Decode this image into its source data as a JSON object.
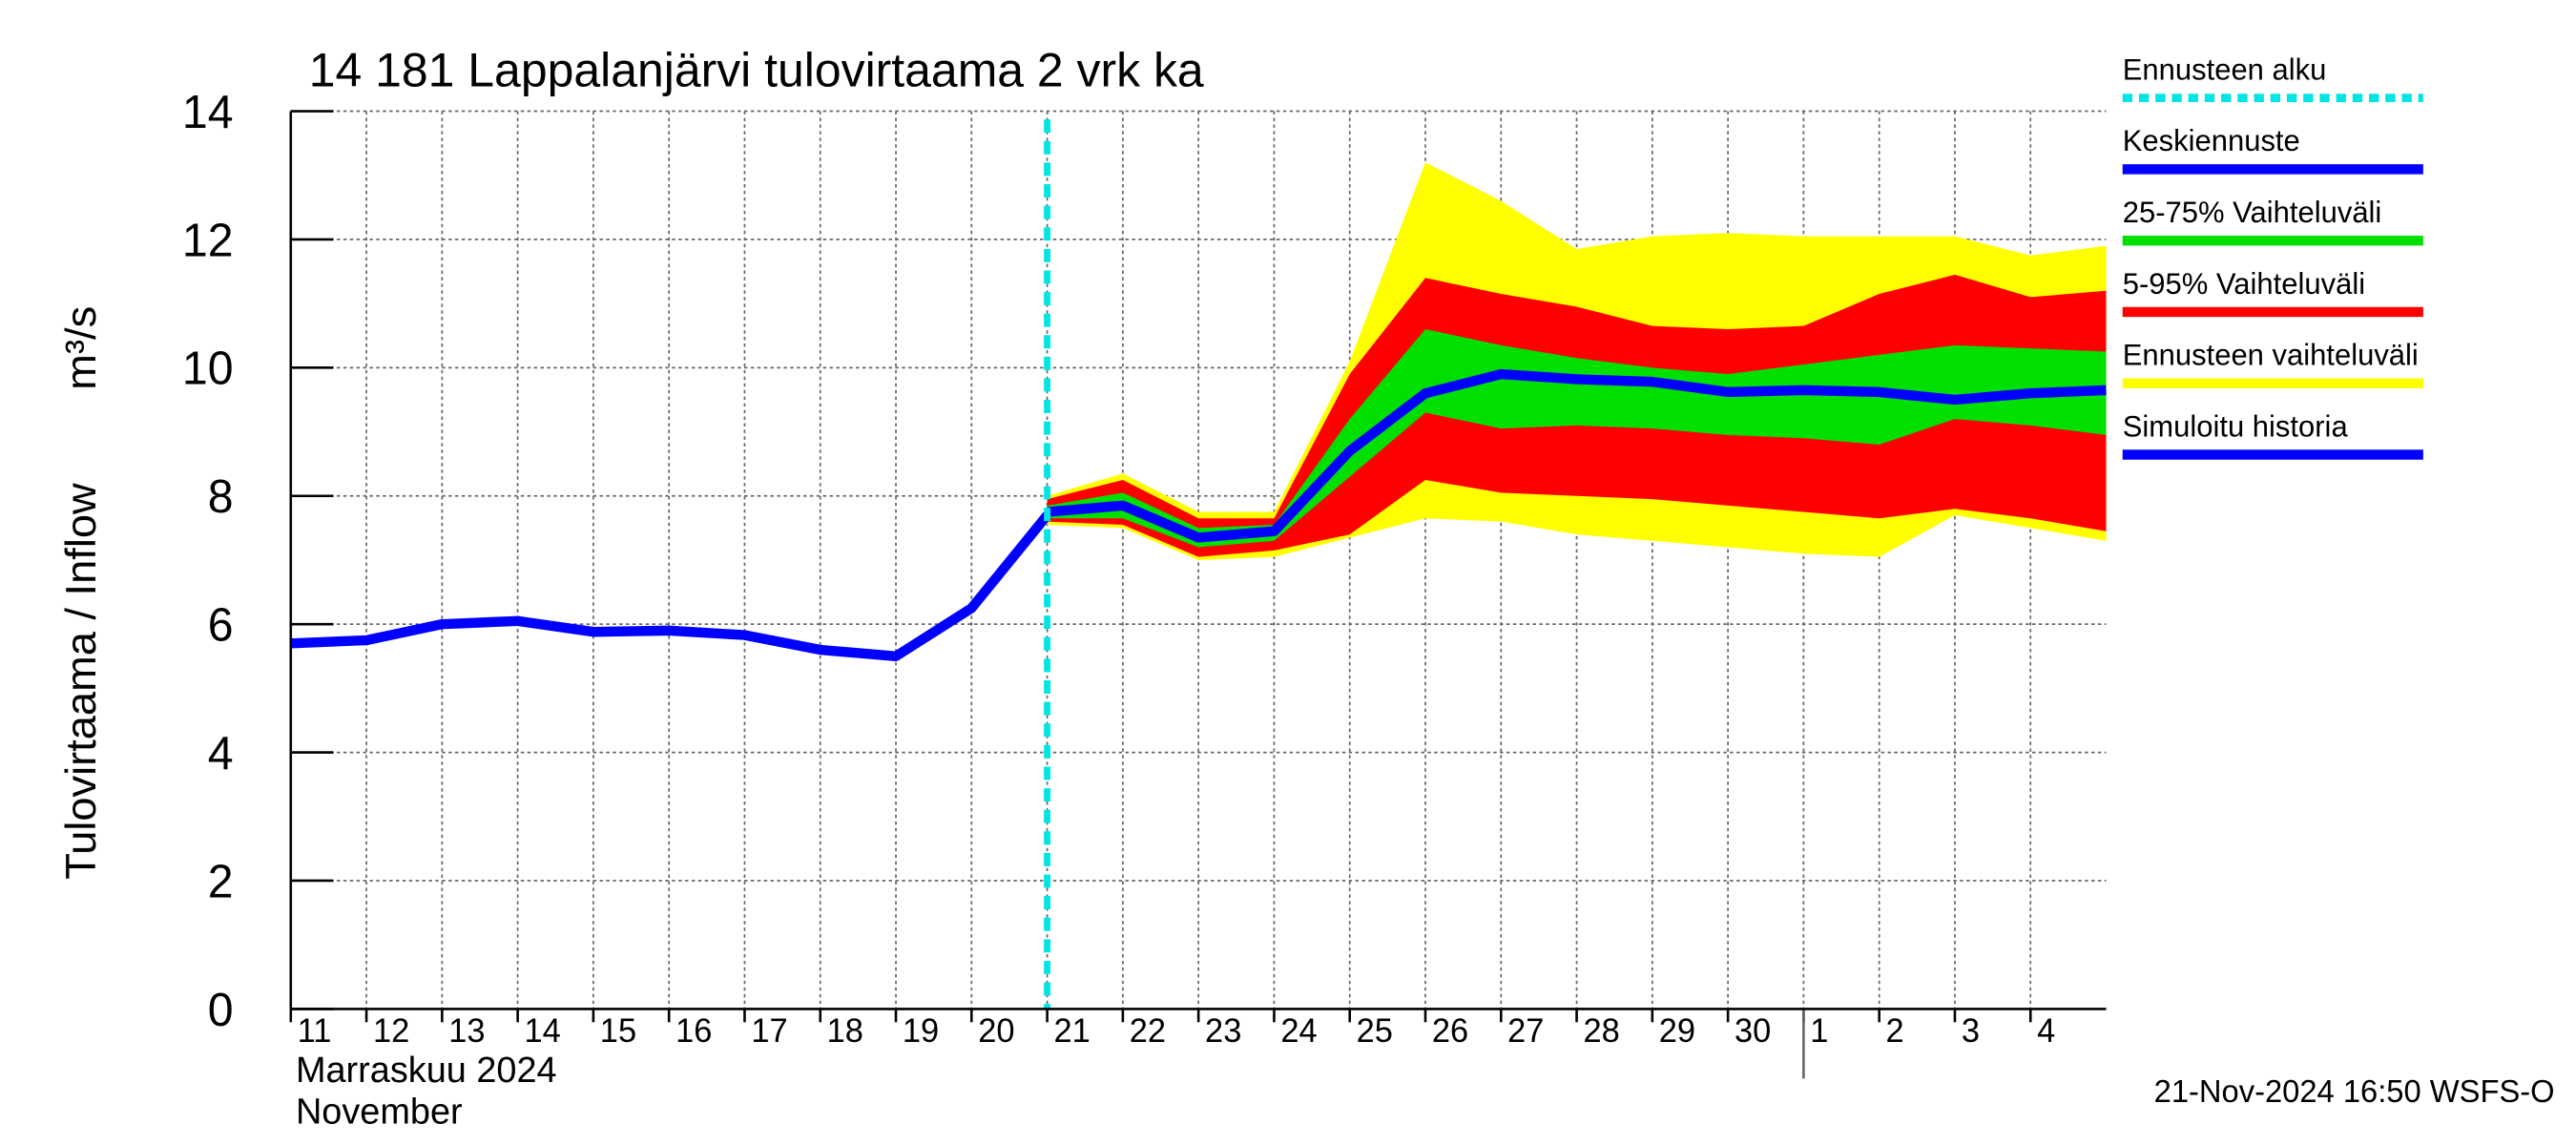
{
  "chart_data": {
    "type": "line",
    "title": "14 181 Lappalanjärvi tulovirtaama 2 vrk ka",
    "y_label": "Tulovirtaama / Inflow",
    "y_unit": "m³/s",
    "x_month_label": "Marraskuu 2024",
    "x_month_label_en": "November",
    "timestamp": "21-Nov-2024 16:50 WSFS-O",
    "xlim": [
      "2024-11-11",
      "2024-12-05"
    ],
    "xticks": [
      {
        "value": "2024-11-11",
        "label": "11"
      },
      {
        "value": "2024-11-12",
        "label": "12"
      },
      {
        "value": "2024-11-13",
        "label": "13"
      },
      {
        "value": "2024-11-14",
        "label": "14"
      },
      {
        "value": "2024-11-15",
        "label": "15"
      },
      {
        "value": "2024-11-16",
        "label": "16"
      },
      {
        "value": "2024-11-17",
        "label": "17"
      },
      {
        "value": "2024-11-18",
        "label": "18"
      },
      {
        "value": "2024-11-19",
        "label": "19"
      },
      {
        "value": "2024-11-20",
        "label": "20"
      },
      {
        "value": "2024-11-21",
        "label": "21"
      },
      {
        "value": "2024-11-22",
        "label": "22"
      },
      {
        "value": "2024-11-23",
        "label": "23"
      },
      {
        "value": "2024-11-24",
        "label": "24"
      },
      {
        "value": "2024-11-25",
        "label": "25"
      },
      {
        "value": "2024-11-26",
        "label": "26"
      },
      {
        "value": "2024-11-27",
        "label": "27"
      },
      {
        "value": "2024-11-28",
        "label": "28"
      },
      {
        "value": "2024-11-29",
        "label": "29"
      },
      {
        "value": "2024-11-30",
        "label": "30"
      },
      {
        "value": "2024-12-01",
        "label": "1"
      },
      {
        "value": "2024-12-02",
        "label": "2"
      },
      {
        "value": "2024-12-03",
        "label": "3"
      },
      {
        "value": "2024-12-04",
        "label": "4"
      }
    ],
    "ylim": [
      0,
      14
    ],
    "yticks": [
      0,
      2,
      4,
      6,
      8,
      10,
      12,
      14
    ],
    "grid": true,
    "forecast_start": {
      "name": "Ennusteen alku",
      "x": "2024-11-21",
      "color": "#00e5e5"
    },
    "bands": [
      {
        "name": "Ennusteen vaihteluväli",
        "color": "#ffff00",
        "x": [
          "2024-11-21",
          "2024-11-22",
          "2024-11-23",
          "2024-11-24",
          "2024-11-25",
          "2024-11-26",
          "2024-11-27",
          "2024-11-28",
          "2024-11-29",
          "2024-11-30",
          "2024-12-01",
          "2024-12-02",
          "2024-12-03",
          "2024-12-04",
          "2024-12-05"
        ],
        "upper": [
          8.0,
          8.35,
          7.75,
          7.75,
          10.1,
          13.2,
          12.6,
          11.85,
          12.05,
          12.1,
          12.05,
          12.05,
          12.05,
          11.75,
          11.9
        ],
        "lower": [
          7.55,
          7.5,
          7.0,
          7.05,
          7.35,
          7.65,
          7.6,
          7.4,
          7.3,
          7.2,
          7.1,
          7.05,
          7.7,
          7.5,
          7.3
        ]
      },
      {
        "name": "5-95% Vaihteluväli",
        "color": "#ff0000",
        "x": [
          "2024-11-21",
          "2024-11-22",
          "2024-11-23",
          "2024-11-24",
          "2024-11-25",
          "2024-11-26",
          "2024-11-27",
          "2024-11-28",
          "2024-11-29",
          "2024-11-30",
          "2024-12-01",
          "2024-12-02",
          "2024-12-03",
          "2024-12-04",
          "2024-12-05"
        ],
        "upper": [
          7.95,
          8.25,
          7.65,
          7.65,
          9.9,
          11.4,
          11.15,
          10.95,
          10.65,
          10.6,
          10.65,
          11.15,
          11.45,
          11.1,
          11.2
        ],
        "lower": [
          7.6,
          7.55,
          7.05,
          7.15,
          7.4,
          8.25,
          8.05,
          8.0,
          7.95,
          7.85,
          7.75,
          7.65,
          7.8,
          7.65,
          7.45
        ]
      },
      {
        "name": "25-75% Vaihteluväli",
        "color": "#00e000",
        "x": [
          "2024-11-21",
          "2024-11-22",
          "2024-11-23",
          "2024-11-24",
          "2024-11-25",
          "2024-11-26",
          "2024-11-27",
          "2024-11-28",
          "2024-11-29",
          "2024-11-30",
          "2024-12-01",
          "2024-12-02",
          "2024-12-03",
          "2024-12-04",
          "2024-12-05"
        ],
        "upper": [
          7.85,
          8.05,
          7.5,
          7.55,
          9.2,
          10.6,
          10.35,
          10.15,
          10.0,
          9.9,
          10.05,
          10.2,
          10.35,
          10.3,
          10.25
        ],
        "lower": [
          7.65,
          7.65,
          7.2,
          7.3,
          8.3,
          9.3,
          9.05,
          9.1,
          9.05,
          8.95,
          8.9,
          8.8,
          9.2,
          9.1,
          8.95
        ]
      }
    ],
    "series": [
      {
        "name": "Keskiennuste",
        "color": "#0000ff",
        "x": [
          "2024-11-21",
          "2024-11-22",
          "2024-11-23",
          "2024-11-24",
          "2024-11-25",
          "2024-11-26",
          "2024-11-27",
          "2024-11-28",
          "2024-11-29",
          "2024-11-30",
          "2024-12-01",
          "2024-12-02",
          "2024-12-03",
          "2024-12-04",
          "2024-12-05"
        ],
        "values": [
          7.75,
          7.85,
          7.35,
          7.45,
          8.7,
          9.6,
          9.9,
          9.82,
          9.78,
          9.62,
          9.65,
          9.62,
          9.5,
          9.6,
          9.65
        ]
      },
      {
        "name": "Simuloitu historia",
        "color": "#0000ff",
        "x": [
          "2024-11-11",
          "2024-11-12",
          "2024-11-13",
          "2024-11-14",
          "2024-11-15",
          "2024-11-16",
          "2024-11-17",
          "2024-11-18",
          "2024-11-19",
          "2024-11-20",
          "2024-11-21"
        ],
        "values": [
          5.7,
          5.75,
          6.0,
          6.05,
          5.88,
          5.9,
          5.83,
          5.6,
          5.5,
          6.25,
          7.7
        ]
      }
    ]
  }
}
